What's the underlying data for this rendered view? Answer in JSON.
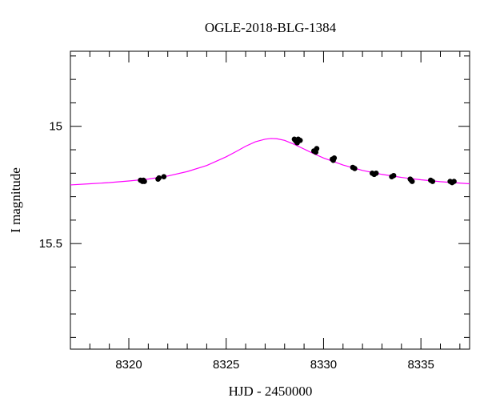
{
  "chart_data": {
    "type": "scatter",
    "title": "OGLE-2018-BLG-1384",
    "xlabel": "HJD - 2450000",
    "ylabel": "I magnitude",
    "xlim": [
      8317,
      8337.5
    ],
    "ylim": [
      15.95,
      14.68
    ],
    "y_inverted": true,
    "grid": false,
    "x_major_ticks": [
      8320,
      8325,
      8330,
      8335
    ],
    "x_minor_ticks": [
      8318,
      8319,
      8321,
      8322,
      8323,
      8324,
      8326,
      8327,
      8328,
      8329,
      8331,
      8332,
      8333,
      8334,
      8336,
      8337
    ],
    "x_tick_labels": [
      "8320",
      "8325",
      "8330",
      "8335"
    ],
    "y_major_ticks": [
      15.0,
      15.5
    ],
    "y_minor_ticks": [
      14.7,
      14.8,
      14.9,
      15.1,
      15.2,
      15.3,
      15.4,
      15.6,
      15.7,
      15.8,
      15.9
    ],
    "y_tick_labels": [
      "15",
      "15.5"
    ],
    "series": [
      {
        "kind": "points",
        "color": "#000000",
        "x": [
          8320.6,
          8320.7,
          8320.75,
          8320.8,
          8321.5,
          8321.55,
          8321.8,
          8328.5,
          8328.55,
          8328.6,
          8328.65,
          8328.7,
          8328.8,
          8329.5,
          8329.6,
          8329.65,
          8330.45,
          8330.5,
          8330.55,
          8331.5,
          8331.6,
          8332.5,
          8332.6,
          8332.7,
          8333.5,
          8333.6,
          8334.45,
          8334.5,
          8334.55,
          8335.5,
          8335.6,
          8336.5,
          8336.6,
          8336.7
        ],
        "y": [
          15.23,
          15.235,
          15.23,
          15.235,
          15.225,
          15.22,
          15.215,
          15.055,
          15.06,
          15.065,
          15.07,
          15.055,
          15.06,
          15.105,
          15.11,
          15.095,
          15.14,
          15.145,
          15.135,
          15.175,
          15.18,
          15.2,
          15.205,
          15.2,
          15.215,
          15.21,
          15.225,
          15.23,
          15.235,
          15.23,
          15.235,
          15.235,
          15.24,
          15.235
        ]
      },
      {
        "kind": "model",
        "color": "#ff00ff",
        "x": [
          8317,
          8318,
          8319,
          8320,
          8321,
          8322,
          8323,
          8324,
          8325,
          8325.5,
          8326,
          8326.5,
          8327,
          8327.3,
          8327.6,
          8328,
          8328.5,
          8329,
          8329.5,
          8330,
          8331,
          8332,
          8333,
          8334,
          8335,
          8336,
          8337,
          8337.5
        ],
        "y": [
          15.25,
          15.245,
          15.24,
          15.233,
          15.225,
          15.212,
          15.193,
          15.167,
          15.13,
          15.108,
          15.085,
          15.066,
          15.055,
          15.052,
          15.053,
          15.06,
          15.077,
          15.097,
          15.117,
          15.135,
          15.165,
          15.188,
          15.205,
          15.218,
          15.228,
          15.236,
          15.242,
          15.245
        ]
      }
    ]
  }
}
